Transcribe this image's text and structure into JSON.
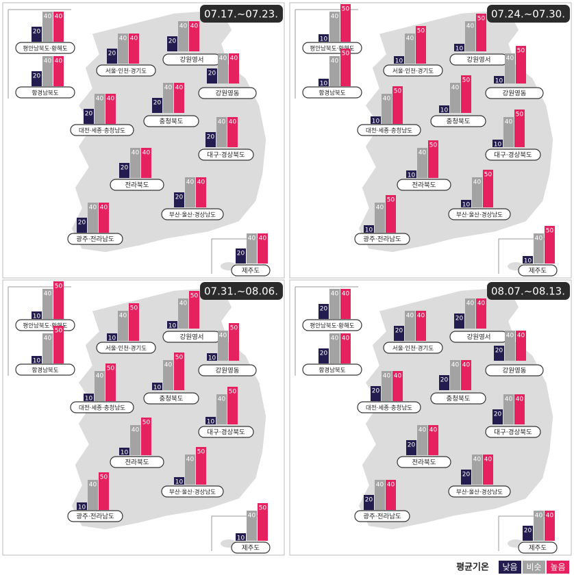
{
  "legend_title": "평균기온",
  "chart_data": [
    {
      "type": "bar",
      "title": "07.17.~07.23.",
      "categories": [
        "평안남북도·황해도",
        "함경남북도",
        "서울·인천·경기도",
        "강원영서",
        "강원영동",
        "충청북도",
        "대전·세종·충청남도",
        "대구·경상북도",
        "전라북도",
        "부산·울산·경상남도",
        "광주·전라남도",
        "제주도"
      ],
      "series": [
        {
          "name": "낮음",
          "color": "#231c4f",
          "values": [
            20,
            20,
            20,
            20,
            20,
            20,
            20,
            20,
            20,
            20,
            20,
            20
          ]
        },
        {
          "name": "비슷",
          "color": "#a3a3a3",
          "values": [
            40,
            40,
            40,
            40,
            40,
            40,
            40,
            40,
            40,
            40,
            40,
            40
          ]
        },
        {
          "name": "높음",
          "color": "#e6215f",
          "values": [
            40,
            40,
            40,
            40,
            40,
            40,
            40,
            40,
            40,
            40,
            40,
            40
          ]
        }
      ]
    },
    {
      "type": "bar",
      "title": "07.24.~07.30.",
      "categories": [
        "평안남북도·황해도",
        "함경남북도",
        "서울·인천·경기도",
        "강원영서",
        "강원영동",
        "충청북도",
        "대전·세종·충청남도",
        "대구·경상북도",
        "전라북도",
        "부산·울산·경상남도",
        "광주·전라남도",
        "제주도"
      ],
      "series": [
        {
          "name": "낮음",
          "color": "#231c4f",
          "values": [
            10,
            10,
            10,
            10,
            10,
            10,
            10,
            10,
            10,
            10,
            10,
            10
          ]
        },
        {
          "name": "비슷",
          "color": "#a3a3a3",
          "values": [
            40,
            40,
            40,
            40,
            40,
            40,
            40,
            40,
            40,
            40,
            40,
            40
          ]
        },
        {
          "name": "높음",
          "color": "#e6215f",
          "values": [
            50,
            50,
            50,
            50,
            50,
            50,
            50,
            50,
            50,
            50,
            50,
            50
          ]
        }
      ]
    },
    {
      "type": "bar",
      "title": "07.31.~08.06.",
      "categories": [
        "평안남북도·황해도",
        "함경남북도",
        "서울·인천·경기도",
        "강원영서",
        "강원영동",
        "충청북도",
        "대전·세종·충청남도",
        "대구·경상북도",
        "전라북도",
        "부산·울산·경상남도",
        "광주·전라남도",
        "제주도"
      ],
      "series": [
        {
          "name": "낮음",
          "color": "#231c4f",
          "values": [
            10,
            10,
            10,
            10,
            10,
            10,
            10,
            10,
            10,
            10,
            10,
            10
          ]
        },
        {
          "name": "비슷",
          "color": "#a3a3a3",
          "values": [
            40,
            40,
            40,
            40,
            40,
            40,
            40,
            40,
            40,
            40,
            40,
            40
          ]
        },
        {
          "name": "높음",
          "color": "#e6215f",
          "values": [
            50,
            50,
            50,
            50,
            50,
            50,
            50,
            50,
            50,
            50,
            50,
            50
          ]
        }
      ]
    },
    {
      "type": "bar",
      "title": "08.07.~08.13.",
      "categories": [
        "평안남북도·황해도",
        "함경남북도",
        "서울·인천·경기도",
        "강원영서",
        "강원영동",
        "충청북도",
        "대전·세종·충청남도",
        "대구·경상북도",
        "전라북도",
        "부산·울산·경상남도",
        "광주·전라남도",
        "제주도"
      ],
      "series": [
        {
          "name": "낮음",
          "color": "#231c4f",
          "values": [
            20,
            20,
            20,
            20,
            20,
            20,
            20,
            20,
            20,
            20,
            20,
            20
          ]
        },
        {
          "name": "비슷",
          "color": "#a3a3a3",
          "values": [
            40,
            40,
            40,
            40,
            40,
            40,
            40,
            40,
            40,
            40,
            40,
            40
          ]
        },
        {
          "name": "높음",
          "color": "#e6215f",
          "values": [
            40,
            40,
            40,
            40,
            40,
            40,
            40,
            40,
            40,
            40,
            40,
            40
          ]
        }
      ]
    }
  ]
}
